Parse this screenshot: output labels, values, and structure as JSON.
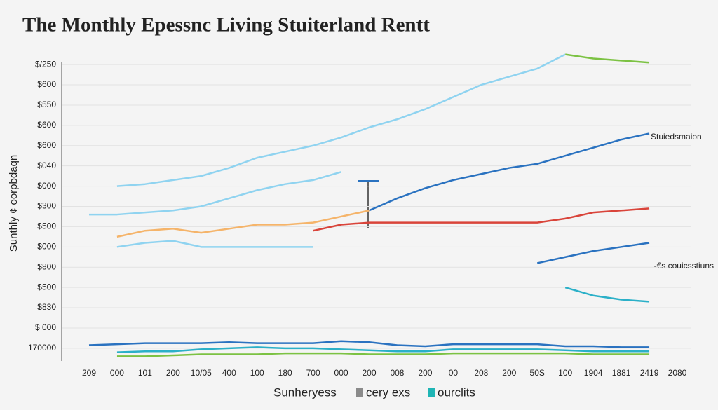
{
  "chart_data": {
    "type": "line",
    "title": "The Monthly Epessnc Living Stuiterland Rentt",
    "y_label": "Sunthly ¢ oorpbdaqn",
    "categories": [
      "209",
      "000",
      "101",
      "200",
      "10/05",
      "400",
      "100",
      "180",
      "700",
      "000",
      "200",
      "008",
      "200",
      "00",
      "208",
      "200",
      "50S",
      "100",
      "1904",
      "1881",
      "2419",
      "2080"
    ],
    "ylim": [
      -0.8,
      14.8
    ],
    "yticks": [
      {
        "value": 0,
        "label": "170000"
      },
      {
        "value": 1,
        "label": "$ 000"
      },
      {
        "value": 2,
        "label": "$830"
      },
      {
        "value": 3,
        "label": "$500"
      },
      {
        "value": 4,
        "label": "$800"
      },
      {
        "value": 5,
        "label": "$000"
      },
      {
        "value": 6,
        "label": "$500"
      },
      {
        "value": 7,
        "label": "$300"
      },
      {
        "value": 8,
        "label": "$000"
      },
      {
        "value": 9,
        "label": "$040"
      },
      {
        "value": 10,
        "label": "$600"
      },
      {
        "value": 11,
        "label": "$600"
      },
      {
        "value": 12,
        "label": "$550"
      },
      {
        "value": 13,
        "label": "$600"
      },
      {
        "value": 14,
        "label": "$/250"
      }
    ],
    "grid": true,
    "series": [
      {
        "color": "#8fd3f0",
        "values": [
          null,
          8.0,
          8.1,
          8.3,
          8.5,
          8.9,
          9.4,
          9.7,
          10.0,
          10.4,
          10.9,
          11.3,
          11.8,
          12.4,
          13.0,
          13.4,
          13.8,
          14.5,
          null,
          null,
          null,
          null
        ]
      },
      {
        "color": "#7cc243",
        "values": [
          null,
          null,
          null,
          null,
          null,
          null,
          null,
          null,
          null,
          null,
          null,
          null,
          null,
          null,
          null,
          null,
          null,
          14.5,
          14.3,
          14.2,
          14.1,
          null
        ]
      },
      {
        "color": "#8fd3f0",
        "values": [
          6.6,
          6.6,
          6.7,
          6.8,
          7.0,
          7.4,
          7.8,
          8.1,
          8.3,
          8.7,
          null,
          null,
          null,
          null,
          null,
          null,
          null,
          null,
          null,
          null,
          null,
          null
        ]
      },
      {
        "color": "#f5b46a",
        "values": [
          null,
          5.5,
          5.8,
          5.9,
          5.7,
          5.9,
          6.1,
          6.1,
          6.2,
          6.5,
          6.8,
          null,
          null,
          null,
          null,
          null,
          null,
          null,
          null,
          null,
          null,
          null
        ]
      },
      {
        "color": "#2a72c0",
        "values": [
          null,
          null,
          null,
          null,
          null,
          null,
          null,
          null,
          null,
          null,
          6.8,
          7.4,
          7.9,
          8.3,
          8.6,
          8.9,
          9.1,
          9.5,
          9.9,
          10.3,
          10.6,
          null
        ]
      },
      {
        "color": "#d9443a",
        "values": [
          null,
          null,
          null,
          null,
          null,
          null,
          null,
          null,
          5.8,
          6.1,
          6.2,
          6.2,
          6.2,
          6.2,
          6.2,
          6.2,
          6.2,
          6.4,
          6.7,
          6.8,
          6.9,
          null
        ]
      },
      {
        "color": "#8fd3f0",
        "values": [
          null,
          5.0,
          5.2,
          5.3,
          5.0,
          5.0,
          5.0,
          5.0,
          5.0,
          null,
          null,
          null,
          null,
          null,
          null,
          null,
          null,
          null,
          null,
          null,
          null,
          null
        ]
      },
      {
        "color": "#2a72c0",
        "values": [
          null,
          null,
          null,
          null,
          null,
          null,
          null,
          null,
          null,
          null,
          null,
          null,
          null,
          null,
          null,
          null,
          4.2,
          4.5,
          4.8,
          5.0,
          5.2,
          null
        ]
      },
      {
        "color": "#2bb0c8",
        "values": [
          null,
          null,
          null,
          null,
          null,
          null,
          null,
          null,
          null,
          null,
          null,
          null,
          null,
          null,
          null,
          null,
          null,
          3.0,
          2.6,
          2.4,
          2.3,
          null
        ]
      },
      {
        "color": "#2a72c0",
        "values": [
          0.15,
          0.2,
          0.25,
          0.25,
          0.25,
          0.3,
          0.25,
          0.25,
          0.25,
          0.35,
          0.3,
          0.15,
          0.1,
          0.2,
          0.2,
          0.2,
          0.2,
          0.1,
          0.1,
          0.05,
          0.05,
          null
        ]
      },
      {
        "color": "#2bb0c8",
        "values": [
          null,
          -0.2,
          -0.15,
          -0.15,
          -0.05,
          0.0,
          0.05,
          0.0,
          0.0,
          -0.05,
          -0.1,
          -0.15,
          -0.15,
          -0.05,
          -0.05,
          -0.05,
          -0.05,
          -0.1,
          -0.15,
          -0.15,
          -0.15,
          null
        ]
      },
      {
        "color": "#7cc243",
        "values": [
          null,
          -0.4,
          -0.4,
          -0.35,
          -0.3,
          -0.3,
          -0.3,
          -0.25,
          -0.25,
          -0.25,
          -0.3,
          -0.3,
          -0.3,
          -0.25,
          -0.25,
          -0.25,
          -0.25,
          -0.25,
          -0.3,
          -0.3,
          -0.3,
          null
        ]
      }
    ],
    "annotations": [
      "Stuiedsmaion",
      "-€s couicsstiuns"
    ],
    "legend": [
      {
        "name": "Sunheryess"
      },
      {
        "name": "cery exs",
        "color": "#8a8a8a"
      },
      {
        "name": "ourclits",
        "color": "#1fb5b5"
      }
    ]
  }
}
